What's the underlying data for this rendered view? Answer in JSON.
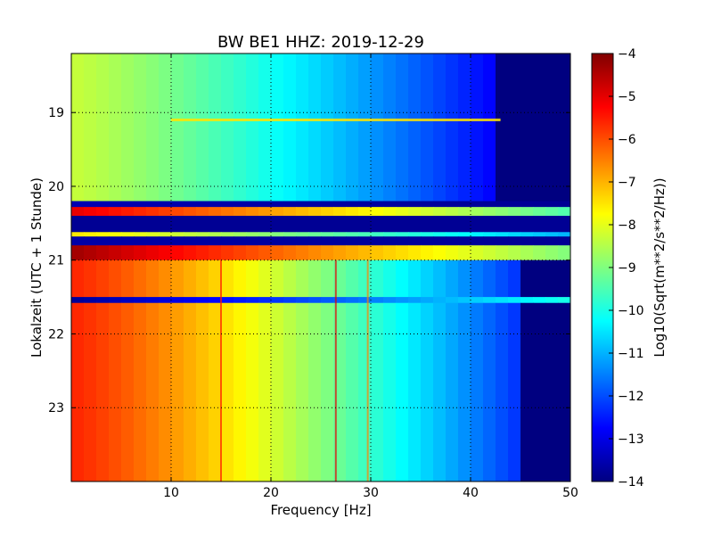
{
  "chart_data": {
    "type": "heatmap",
    "title": "BW BE1 HHZ: 2019-12-29",
    "xlabel": "Frequency [Hz]",
    "ylabel": "Lokalzeit (UTC + 1 Stunde)",
    "xlim": [
      0,
      50
    ],
    "ylim": [
      24,
      18.2
    ],
    "x_ticks": [
      10,
      20,
      30,
      40,
      50
    ],
    "y_ticks": [
      19,
      20,
      21,
      22,
      23
    ],
    "grid": true,
    "colorscale": "jet",
    "colorbar": {
      "label": "Log10(Sqrt(m**2/s**2/Hz))",
      "range": [
        -14,
        -4
      ],
      "ticks": [
        -4,
        -5,
        -6,
        -7,
        -8,
        -9,
        -10,
        -11,
        -12,
        -13,
        -14
      ]
    },
    "time_bands": [
      {
        "start": 18.2,
        "end": 20.2,
        "level_at_0hz": -8.3,
        "level_at_50hz": -14,
        "noise_floor_from_hz": 43
      },
      {
        "start": 20.2,
        "end": 20.28,
        "level_at_0hz": -13.5,
        "level_at_50hz": -13.8
      },
      {
        "start": 20.28,
        "end": 20.4,
        "level_at_0hz": -5,
        "level_at_50hz": -9.5
      },
      {
        "start": 20.4,
        "end": 20.62,
        "level_at_0hz": -13.8,
        "level_at_50hz": -13.8
      },
      {
        "start": 20.62,
        "end": 20.68,
        "level_at_0hz": -7.5,
        "level_at_50hz": -11
      },
      {
        "start": 20.68,
        "end": 20.8,
        "level_at_0hz": -13.6,
        "level_at_50hz": -13.8
      },
      {
        "start": 20.8,
        "end": 21.0,
        "level_at_0hz": -4.3,
        "level_at_50hz": -9
      },
      {
        "start": 21.0,
        "end": 21.5,
        "level_at_0hz": -5.6,
        "level_at_50hz": -14,
        "noise_floor_from_hz": 45
      },
      {
        "start": 21.5,
        "end": 21.58,
        "level_at_0hz": -13.8,
        "level_at_50hz": -10
      },
      {
        "start": 21.58,
        "end": 24.0,
        "level_at_0hz": -5.6,
        "level_at_50hz": -14,
        "noise_floor_from_hz": 45
      }
    ],
    "horizontal_lines": [
      {
        "time": 19.1,
        "level": -7.5,
        "from_hz": 10,
        "to_hz": 43
      }
    ],
    "vertical_lines": [
      {
        "freq": 15,
        "level": -5.5
      },
      {
        "freq": 26.5,
        "level": -5.0
      },
      {
        "freq": 29.7,
        "level": -6.5
      }
    ]
  }
}
